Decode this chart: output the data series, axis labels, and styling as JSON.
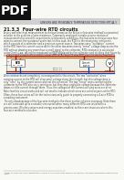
{
  "title": "21.3.3  Four-wire RTD circuits",
  "header_text": "SENSORS AND RESISTANCE TEMPERATURE DETECTORS (RTDs)",
  "page_number": "21.3",
  "body_text_1": "A very well electrical measurement technique known as the Kelvin or four-wire method is a practical solution to the problem of wire resistance. Commonly employed in make precise resistance measurements for scientific experiments in laboratory conditions, the four-wire technique uses four wires to connect the resistance under test (in this case, the RTD) to the measuring instrument, which consists of a voltmeter and a precision current source. Two wires carry \"excitation\" current to the RTD from the current source while the other two wires merely \"sense\" voltage drop across the RTD without drawing any more than a small signal to the voltmeter. RTD resistance is calculated using Ohm's Law: taking the measured voltage displayed by the voltmeter and dividing that figure by the regulated current value of the current source. A simple 4-wire RTD circuit is shown here for illustration:",
  "body_text_2": "Wire resistances are completely inconsequential in this circuit. The two \"excitation\" wires carrying current to the RTD will drop small voltage along their length, but this voltage drop is only \"seen\" by the current source and not the voltmeter. The two \"sense\" wires connecting the voltmeter to the RTD also carry resistance, but they drop negligible voltage because the voltmeter draws so little current through them. Thus, the voltages of the current-carrying wires are of no effect because the voltmeter never senses their voltage drops, and the resistances of the voltmeter-sensing wires are of no effect because there is negligible current through them.",
  "body_text_3": "Note that this circuit works and will not tend to indicate which wires are common pairs at the RTD. Often, these four colors will be the technicians only guide to properly connecting a 4-wire RTD to a reading instrument.",
  "body_text_4": "The only disadvantage of the four-wire method is the sheer number of wires necessary. Note there are still extra add up to a notable size overall when many different RTDs are installed in a process area. Wireless sensors and energy exporters enabled, so there are situations where this four-wire method is a burden.",
  "footnote": "* Notes on simplified circuit representation and wire color organization practices for four-wire impedance temperature detection are noted.",
  "page_bg": "#f8f8f4",
  "header_bg": "#d0d0d0",
  "text_color": "#222222",
  "body_color": "#444444",
  "pdf_bg": "#111111",
  "circuit_bg": "#f0f0e8",
  "circuit_border": "#888888"
}
